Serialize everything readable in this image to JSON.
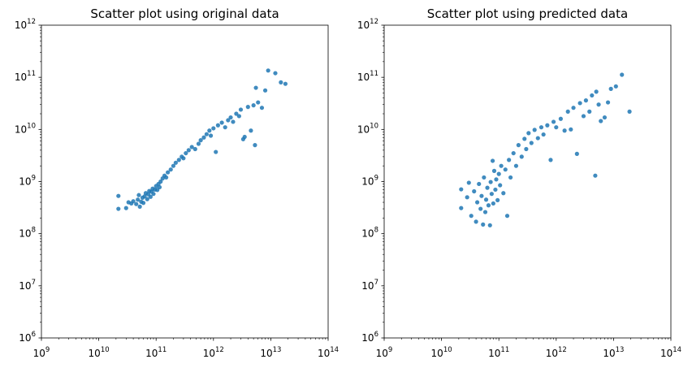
{
  "chart_data": [
    {
      "type": "scatter",
      "title": "Scatter plot using original data",
      "xlabel": "",
      "ylabel": "",
      "x_scale": "log",
      "y_scale": "log",
      "xlim": [
        1000000000.0,
        100000000000000.0
      ],
      "ylim": [
        1000000.0,
        1000000000000.0
      ],
      "grid": false,
      "color": "#1f77b4",
      "x_ticks": [
        {
          "base": "10",
          "exp": "9",
          "value": 1000000000.0
        },
        {
          "base": "10",
          "exp": "10",
          "value": 10000000000.0
        },
        {
          "base": "10",
          "exp": "11",
          "value": 100000000000.0
        },
        {
          "base": "10",
          "exp": "12",
          "value": 1000000000000.0
        },
        {
          "base": "10",
          "exp": "13",
          "value": 10000000000000.0
        },
        {
          "base": "10",
          "exp": "14",
          "value": 100000000000000.0
        }
      ],
      "y_ticks": [
        {
          "base": "10",
          "exp": "6",
          "value": 1000000.0
        },
        {
          "base": "10",
          "exp": "7",
          "value": 10000000.0
        },
        {
          "base": "10",
          "exp": "8",
          "value": 100000000.0
        },
        {
          "base": "10",
          "exp": "9",
          "value": 1000000000.0
        },
        {
          "base": "10",
          "exp": "10",
          "value": 10000000000.0
        },
        {
          "base": "10",
          "exp": "11",
          "value": 100000000000.0
        },
        {
          "base": "10",
          "exp": "12",
          "value": 1000000000000.0
        }
      ],
      "points": [
        [
          22000000000.0,
          300000000.0
        ],
        [
          22000000000.0,
          530000000.0
        ],
        [
          30000000000.0,
          310000000.0
        ],
        [
          33000000000.0,
          400000000.0
        ],
        [
          37000000000.0,
          380000000.0
        ],
        [
          40000000000.0,
          420000000.0
        ],
        [
          45000000000.0,
          370000000.0
        ],
        [
          48000000000.0,
          450000000.0
        ],
        [
          50000000000.0,
          550000000.0
        ],
        [
          52000000000.0,
          330000000.0
        ],
        [
          55000000000.0,
          410000000.0
        ],
        [
          58000000000.0,
          490000000.0
        ],
        [
          60000000000.0,
          390000000.0
        ],
        [
          63000000000.0,
          520000000.0
        ],
        [
          66000000000.0,
          600000000.0
        ],
        [
          70000000000.0,
          460000000.0
        ],
        [
          73000000000.0,
          570000000.0
        ],
        [
          76000000000.0,
          660000000.0
        ],
        [
          80000000000.0,
          510000000.0
        ],
        [
          83000000000.0,
          640000000.0
        ],
        [
          87000000000.0,
          730000000.0
        ],
        [
          90000000000.0,
          580000000.0
        ],
        [
          95000000000.0,
          700000000.0
        ],
        [
          100000000000.0,
          820000000.0
        ],
        [
          105000000000.0,
          690000000.0
        ],
        [
          110000000000.0,
          900000000.0
        ],
        [
          115000000000.0,
          780000000.0
        ],
        [
          120000000000.0,
          1000000000.0
        ],
        [
          130000000000.0,
          1150000000.0
        ],
        [
          140000000000.0,
          1300000000.0
        ],
        [
          150000000000.0,
          1200000000.0
        ],
        [
          160000000000.0,
          1500000000.0
        ],
        [
          180000000000.0,
          1700000000.0
        ],
        [
          200000000000.0,
          2000000000.0
        ],
        [
          220000000000.0,
          2300000000.0
        ],
        [
          250000000000.0,
          2600000000.0
        ],
        [
          280000000000.0,
          3000000000.0
        ],
        [
          300000000000.0,
          2800000000.0
        ],
        [
          330000000000.0,
          3500000000.0
        ],
        [
          370000000000.0,
          4000000000.0
        ],
        [
          420000000000.0,
          4600000000.0
        ],
        [
          480000000000.0,
          4200000000.0
        ],
        [
          550000000000.0,
          5300000000.0
        ],
        [
          600000000000.0,
          6200000000.0
        ],
        [
          680000000000.0,
          7000000000.0
        ],
        [
          760000000000.0,
          8100000000.0
        ],
        [
          850000000000.0,
          9500000000.0
        ],
        [
          900000000000.0,
          7600000000.0
        ],
        [
          1000000000000.0,
          10500000000.0
        ],
        [
          1100000000000.0,
          3700000000.0
        ],
        [
          1200000000000.0,
          12000000000.0
        ],
        [
          1400000000000.0,
          13500000000.0
        ],
        [
          1600000000000.0,
          11000000000.0
        ],
        [
          1800000000000.0,
          15000000000.0
        ],
        [
          2000000000000.0,
          17000000000.0
        ],
        [
          2200000000000.0,
          14000000000.0
        ],
        [
          2500000000000.0,
          20000000000.0
        ],
        [
          2800000000000.0,
          18000000000.0
        ],
        [
          3000000000000.0,
          24000000000.0
        ],
        [
          3300000000000.0,
          6500000000.0
        ],
        [
          3500000000000.0,
          7200000000.0
        ],
        [
          4000000000000.0,
          27000000000.0
        ],
        [
          4500000000000.0,
          9500000000.0
        ],
        [
          5000000000000.0,
          29000000000.0
        ],
        [
          5300000000000.0,
          5000000000.0
        ],
        [
          5500000000000.0,
          63000000000.0
        ],
        [
          6000000000000.0,
          33000000000.0
        ],
        [
          7000000000000.0,
          26000000000.0
        ],
        [
          8000000000000.0,
          56000000000.0
        ],
        [
          9000000000000.0,
          135000000000.0
        ],
        [
          12000000000000.0,
          120000000000.0
        ],
        [
          15000000000000.0,
          80000000000.0
        ],
        [
          18000000000000.0,
          75000000000.0
        ]
      ]
    },
    {
      "type": "scatter",
      "title": "Scatter plot using predicted data",
      "xlabel": "",
      "ylabel": "",
      "x_scale": "log",
      "y_scale": "log",
      "xlim": [
        1000000000.0,
        100000000000000.0
      ],
      "ylim": [
        1000000.0,
        1000000000000.0
      ],
      "grid": false,
      "color": "#1f77b4",
      "x_ticks": [
        {
          "base": "10",
          "exp": "9",
          "value": 1000000000.0
        },
        {
          "base": "10",
          "exp": "10",
          "value": 10000000000.0
        },
        {
          "base": "10",
          "exp": "11",
          "value": 100000000000.0
        },
        {
          "base": "10",
          "exp": "12",
          "value": 1000000000000.0
        },
        {
          "base": "10",
          "exp": "13",
          "value": 10000000000000.0
        },
        {
          "base": "10",
          "exp": "14",
          "value": 100000000000000.0
        }
      ],
      "y_ticks": [
        {
          "base": "10",
          "exp": "6",
          "value": 1000000.0
        },
        {
          "base": "10",
          "exp": "7",
          "value": 10000000.0
        },
        {
          "base": "10",
          "exp": "8",
          "value": 100000000.0
        },
        {
          "base": "10",
          "exp": "9",
          "value": 1000000000.0
        },
        {
          "base": "10",
          "exp": "10",
          "value": 10000000000.0
        },
        {
          "base": "10",
          "exp": "11",
          "value": 100000000000.0
        },
        {
          "base": "10",
          "exp": "12",
          "value": 1000000000000.0
        }
      ],
      "points": [
        [
          22000000000.0,
          310000000.0
        ],
        [
          22000000000.0,
          710000000.0
        ],
        [
          28000000000.0,
          500000000.0
        ],
        [
          30000000000.0,
          950000000.0
        ],
        [
          33000000000.0,
          220000000.0
        ],
        [
          37000000000.0,
          650000000.0
        ],
        [
          40000000000.0,
          170000000.0
        ],
        [
          42000000000.0,
          400000000.0
        ],
        [
          45000000000.0,
          900000000.0
        ],
        [
          48000000000.0,
          300000000.0
        ],
        [
          50000000000.0,
          530000000.0
        ],
        [
          53000000000.0,
          150000000.0
        ],
        [
          55000000000.0,
          1200000000.0
        ],
        [
          58000000000.0,
          260000000.0
        ],
        [
          60000000000.0,
          450000000.0
        ],
        [
          63000000000.0,
          760000000.0
        ],
        [
          66000000000.0,
          350000000.0
        ],
        [
          70000000000.0,
          145000000.0
        ],
        [
          72000000000.0,
          980000000.0
        ],
        [
          75000000000.0,
          580000000.0
        ],
        [
          78000000000.0,
          2500000000.0
        ],
        [
          80000000000.0,
          380000000.0
        ],
        [
          83000000000.0,
          1600000000.0
        ],
        [
          87000000000.0,
          700000000.0
        ],
        [
          90000000000.0,
          1100000000.0
        ],
        [
          95000000000.0,
          440000000.0
        ],
        [
          100000000000.0,
          1400000000.0
        ],
        [
          105000000000.0,
          850000000.0
        ],
        [
          110000000000.0,
          2000000000.0
        ],
        [
          120000000000.0,
          600000000.0
        ],
        [
          130000000000.0,
          1700000000.0
        ],
        [
          140000000000.0,
          220000000.0
        ],
        [
          150000000000.0,
          2600000000.0
        ],
        [
          160000000000.0,
          1200000000.0
        ],
        [
          180000000000.0,
          3500000000.0
        ],
        [
          200000000000.0,
          2000000000.0
        ],
        [
          220000000000.0,
          5000000000.0
        ],
        [
          250000000000.0,
          3000000000.0
        ],
        [
          280000000000.0,
          6600000000.0
        ],
        [
          300000000000.0,
          4200000000.0
        ],
        [
          330000000000.0,
          8500000000.0
        ],
        [
          370000000000.0,
          5500000000.0
        ],
        [
          420000000000.0,
          9800000000.0
        ],
        [
          480000000000.0,
          6800000000.0
        ],
        [
          550000000000.0,
          11000000000.0
        ],
        [
          600000000000.0,
          8000000000.0
        ],
        [
          700000000000.0,
          12000000000.0
        ],
        [
          800000000000.0,
          2600000000.0
        ],
        [
          900000000000.0,
          14000000000.0
        ],
        [
          1000000000000.0,
          11000000000.0
        ],
        [
          1200000000000.0,
          16000000000.0
        ],
        [
          1400000000000.0,
          9500000000.0
        ],
        [
          1600000000000.0,
          22000000000.0
        ],
        [
          1800000000000.0,
          10000000000.0
        ],
        [
          2000000000000.0,
          26000000000.0
        ],
        [
          2300000000000.0,
          3400000000.0
        ],
        [
          2600000000000.0,
          32000000000.0
        ],
        [
          3000000000000.0,
          18000000000.0
        ],
        [
          3300000000000.0,
          36000000000.0
        ],
        [
          3800000000000.0,
          22000000000.0
        ],
        [
          4200000000000.0,
          45000000000.0
        ],
        [
          4800000000000.0,
          1300000000.0
        ],
        [
          5000000000000.0,
          53000000000.0
        ],
        [
          5500000000000.0,
          30000000000.0
        ],
        [
          6000000000000.0,
          14500000000.0
        ],
        [
          7000000000000.0,
          17000000000.0
        ],
        [
          8000000000000.0,
          33000000000.0
        ],
        [
          9000000000000.0,
          60000000000.0
        ],
        [
          11000000000000.0,
          67000000000.0
        ],
        [
          14000000000000.0,
          112000000000.0
        ],
        [
          19000000000000.0,
          22000000000.0
        ]
      ]
    }
  ]
}
